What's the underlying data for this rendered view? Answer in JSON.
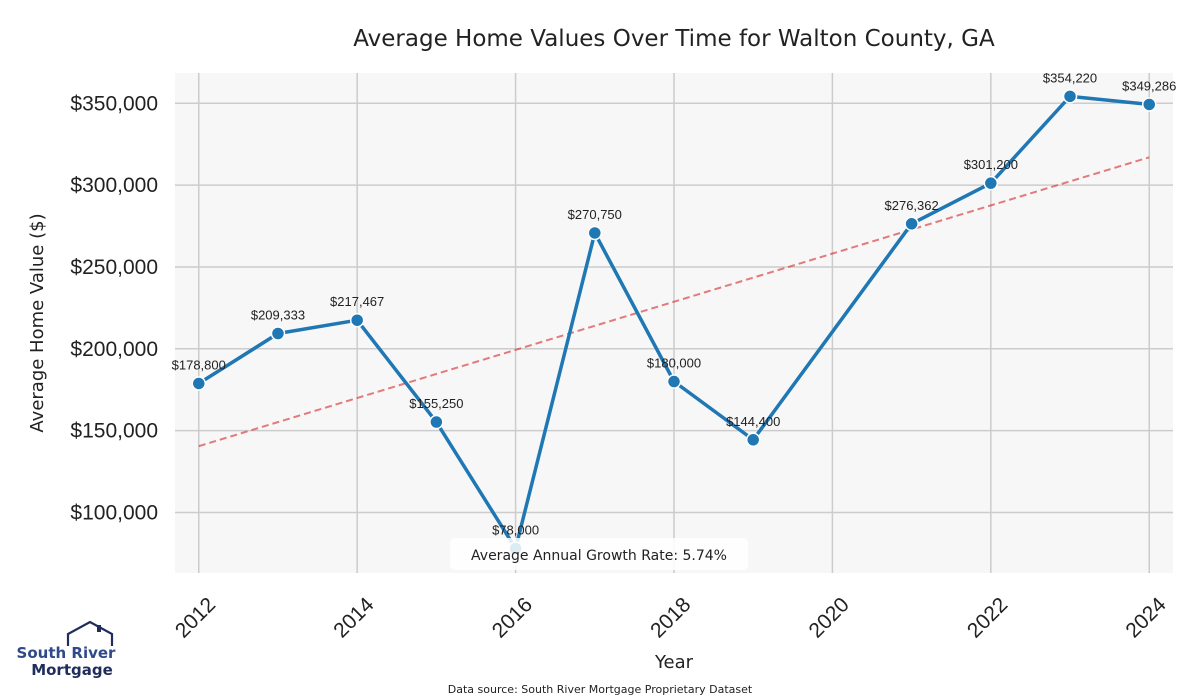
{
  "chart_data": {
    "type": "line",
    "title": "Average Home Values Over Time for Walton County, GA",
    "xlabel": "Year",
    "ylabel": "Average Home Value ($)",
    "xlim": [
      2011.7,
      2024.3
    ],
    "ylim": [
      63000,
      368500
    ],
    "x_ticks": [
      2012,
      2014,
      2016,
      2018,
      2020,
      2022,
      2024
    ],
    "y_ticks": [
      100000,
      150000,
      200000,
      250000,
      300000,
      350000
    ],
    "y_tick_labels": [
      "$100,000",
      "$150,000",
      "$200,000",
      "$250,000",
      "$300,000",
      "$350,000"
    ],
    "grid": true,
    "series": [
      {
        "name": "Average Home Value",
        "color": "#1f77b4",
        "x": [
          2012,
          2013,
          2014,
          2015,
          2016,
          2017,
          2018,
          2019,
          2021,
          2022,
          2023,
          2024
        ],
        "values": [
          178800,
          209333,
          217467,
          155250,
          78000,
          270750,
          180000,
          144400,
          276362,
          301200,
          354220,
          349286
        ],
        "labels": [
          "$178,800",
          "$209,333",
          "$217,467",
          "$155,250",
          "$78,000",
          "$270,750",
          "$180,000",
          "$144,400",
          "$276,362",
          "$301,200",
          "$354,220",
          "$349,286"
        ]
      }
    ],
    "trendline": {
      "name": "Trend",
      "color": "#d62728",
      "style": "dashed",
      "x": [
        2012,
        2024
      ],
      "values": [
        140500,
        317000
      ]
    },
    "annotation": "Average Annual Growth Rate: 5.74%"
  },
  "footer": {
    "source": "Data source: South River Mortgage Proprietary Dataset"
  },
  "logo": {
    "line1": "South River",
    "line2": "Mortgage",
    "color_primary": "#2f4a8a",
    "color_secondary": "#1f2d5c"
  },
  "colors": {
    "plot_bg": "#f7f7f7",
    "grid": "#cccccc"
  }
}
